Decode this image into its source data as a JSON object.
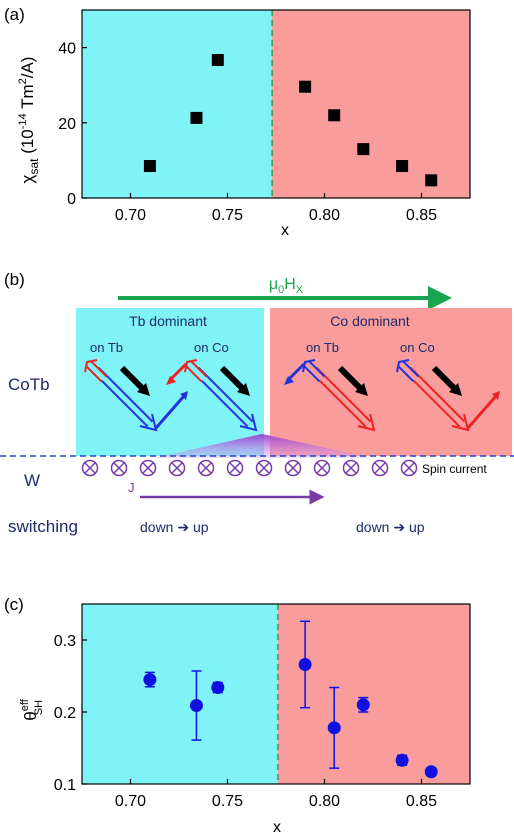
{
  "colors": {
    "cyan_region": "#80f3f6",
    "red_region": "#f99d9c",
    "divider": "#3a9a4a",
    "marker_a": "#000000",
    "marker_c": "#1010e0",
    "green_arrow": "#1aa550",
    "spin_purple": "#7a3aa8",
    "navy_text": "#1f2a6a",
    "red_arrow": "#ee2222",
    "blue_arrow": "#2222dd"
  },
  "chart_data": [
    {
      "type": "scatter",
      "panel_label": "(a)",
      "xlabel": "x",
      "ylabel_parts": {
        "main": "χ",
        "sub": "sat",
        "unit_open": " (10",
        "unit_exp": "-14",
        "unit_mid": " Tm",
        "unit_exp2": "2",
        "unit_close": "/A)"
      },
      "xlim": [
        0.675,
        0.875
      ],
      "ylim": [
        0,
        50
      ],
      "xticks": [
        "0.70",
        "0.75",
        "0.80",
        "0.85"
      ],
      "xtick_values": [
        0.7,
        0.75,
        0.8,
        0.85
      ],
      "yticks": [
        "0",
        "20",
        "40"
      ],
      "ytick_values": [
        0,
        20,
        40
      ],
      "divider_x": 0.773,
      "series": [
        {
          "x": [
            0.71,
            0.734,
            0.745,
            0.79,
            0.805,
            0.82,
            0.84,
            0.855
          ],
          "y": [
            8.5,
            21.3,
            36.7,
            29.6,
            22.0,
            13.0,
            8.5,
            4.7
          ]
        }
      ]
    },
    {
      "type": "scatter",
      "panel_label": "(c)",
      "xlabel": "x",
      "ylabel_parts": {
        "main": "θ",
        "sup": "eff",
        "sub": "SH"
      },
      "xlim": [
        0.675,
        0.875
      ],
      "ylim": [
        0.1,
        0.35
      ],
      "xticks": [
        "0.70",
        "0.75",
        "0.80",
        "0.85"
      ],
      "xtick_values": [
        0.7,
        0.75,
        0.8,
        0.85
      ],
      "yticks": [
        "0.1",
        "0.2",
        "0.3"
      ],
      "ytick_values": [
        0.1,
        0.2,
        0.3
      ],
      "divider_x": 0.776,
      "series": [
        {
          "x": [
            0.71,
            0.734,
            0.745,
            0.79,
            0.805,
            0.82,
            0.84,
            0.855
          ],
          "y": [
            0.245,
            0.209,
            0.234,
            0.266,
            0.178,
            0.21,
            0.133,
            0.117
          ],
          "err": [
            0.01,
            0.048,
            0.007,
            0.06,
            0.056,
            0.01,
            0.007,
            0.004
          ]
        }
      ]
    }
  ],
  "schematic": {
    "panel_label": "(b)",
    "field": {
      "main": "μ",
      "sub1": "0",
      "mid": "H",
      "sub2": "X"
    },
    "tb_dominant": "Tb dominant",
    "co_dominant": "Co dominant",
    "on_tb": "on Tb",
    "on_co": "on Co",
    "cotb_label": "CoTb",
    "w_label": "W",
    "spin_current": "Spin current",
    "spin_count": 12,
    "j_label": "J",
    "switching_label": "switching",
    "switch_left": "down ➔ up",
    "switch_right": "down ➔ up"
  }
}
